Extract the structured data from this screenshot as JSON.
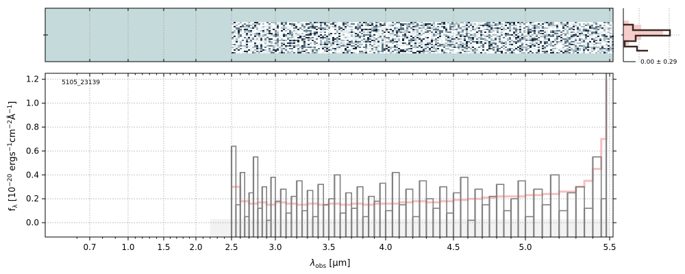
{
  "chart_data": [
    {
      "panel": "2d-spectrum",
      "type": "heatmap",
      "background_color": "#c5dadb",
      "data_x_range": [
        2.5,
        5.5
      ],
      "grid": true
    },
    {
      "panel": "spatial-profile",
      "type": "line",
      "annotation": "0.00 ± 0.29",
      "fill_color": "#f6c4c2",
      "line_color": "#3a2a24",
      "grid": true
    },
    {
      "panel": "1d-spectrum",
      "type": "line",
      "object_label": "5105_23139",
      "xlabel_main": "λ",
      "xlabel_sub": "obs",
      "xlabel_unit": " [μm]",
      "ylabel_text": "f",
      "ylabel_sub": "λ",
      "ylabel_unit_parts": [
        " [10",
        "−20",
        " ergs",
        "−1",
        "cm",
        "−2",
        "Å",
        "−1",
        "]"
      ],
      "x_ticks": [
        {
          "value": 0.7,
          "label": "0.7"
        },
        {
          "value": 1.0,
          "label": "1.0"
        },
        {
          "value": 1.5,
          "label": "1.5"
        },
        {
          "value": 2.0,
          "label": "2.0"
        },
        {
          "value": 2.5,
          "label": "2.5"
        },
        {
          "value": 3.0,
          "label": "3.0"
        },
        {
          "value": 3.5,
          "label": "3.5"
        },
        {
          "value": 4.0,
          "label": "4.0"
        },
        {
          "value": 4.5,
          "label": "4.5"
        },
        {
          "value": 5.0,
          "label": "5.0"
        },
        {
          "value": 5.5,
          "label": "5.5"
        }
      ],
      "y_ticks": [
        0.0,
        0.2,
        0.4,
        0.6,
        0.8,
        1.0,
        1.2
      ],
      "y_tick_labels": [
        "0.0",
        "0.2",
        "0.4",
        "0.6",
        "0.8",
        "1.0",
        "1.2"
      ],
      "ylim": [
        -0.12,
        1.25
      ],
      "grid": true,
      "series": [
        {
          "role": "observed-flux",
          "color": "#808080",
          "x": [
            2.5,
            2.55,
            2.6,
            2.65,
            2.7,
            2.75,
            2.8,
            2.85,
            2.9,
            2.95,
            3.0,
            3.05,
            3.1,
            3.15,
            3.2,
            3.25,
            3.3,
            3.35,
            3.4,
            3.45,
            3.5,
            3.55,
            3.6,
            3.65,
            3.7,
            3.75,
            3.8,
            3.85,
            3.9,
            3.95,
            4.0,
            4.05,
            4.1,
            4.15,
            4.2,
            4.25,
            4.3,
            4.35,
            4.4,
            4.45,
            4.5,
            4.55,
            4.6,
            4.65,
            4.7,
            4.75,
            4.8,
            4.85,
            4.9,
            4.95,
            5.0,
            5.05,
            5.1,
            5.15,
            5.2,
            5.25,
            5.3,
            5.35,
            5.4,
            5.45,
            5.48
          ],
          "values": [
            0.64,
            0.15,
            0.42,
            0.05,
            0.25,
            0.55,
            0.12,
            0.3,
            0.02,
            0.38,
            0.18,
            0.28,
            0.08,
            0.22,
            0.35,
            0.1,
            0.27,
            0.05,
            0.32,
            0.15,
            0.2,
            0.4,
            0.08,
            0.25,
            0.12,
            0.3,
            0.05,
            0.22,
            0.18,
            0.33,
            0.1,
            0.42,
            0.15,
            0.28,
            0.05,
            0.35,
            0.2,
            0.12,
            0.3,
            0.08,
            0.25,
            0.38,
            0.02,
            0.28,
            0.15,
            0.22,
            0.32,
            0.1,
            0.2,
            0.35,
            0.05,
            0.28,
            0.15,
            0.4,
            0.1,
            0.25,
            0.3,
            0.12,
            0.55,
            0.2,
            1.25
          ]
        },
        {
          "role": "model-fit",
          "color": "#f4aaa8",
          "x": [
            2.5,
            2.6,
            2.7,
            2.8,
            2.9,
            3.0,
            3.1,
            3.2,
            3.3,
            3.4,
            3.5,
            3.6,
            3.7,
            3.8,
            3.9,
            4.0,
            4.1,
            4.2,
            4.3,
            4.4,
            4.5,
            4.6,
            4.7,
            4.8,
            4.9,
            5.0,
            5.1,
            5.2,
            5.3,
            5.35,
            5.4,
            5.45,
            5.48
          ],
          "values": [
            0.3,
            0.18,
            0.16,
            0.17,
            0.15,
            0.17,
            0.16,
            0.15,
            0.16,
            0.15,
            0.16,
            0.15,
            0.16,
            0.15,
            0.16,
            0.16,
            0.17,
            0.18,
            0.17,
            0.18,
            0.19,
            0.2,
            0.21,
            0.22,
            0.22,
            0.23,
            0.24,
            0.26,
            0.3,
            0.35,
            0.45,
            0.7,
            1.2
          ]
        }
      ]
    }
  ]
}
